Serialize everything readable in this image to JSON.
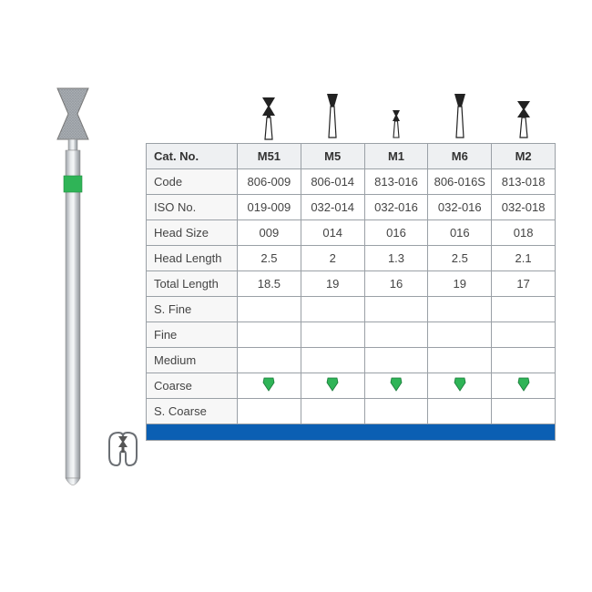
{
  "table": {
    "header_label": "Cat. No.",
    "rows": [
      {
        "label": "Code",
        "values": [
          "806-009",
          "806-014",
          "813-016",
          "806-016S",
          "813-018"
        ]
      },
      {
        "label": "ISO No.",
        "values": [
          "019-009",
          "032-014",
          "032-016",
          "032-016",
          "032-018"
        ]
      },
      {
        "label": "Head Size",
        "values": [
          "009",
          "014",
          "016",
          "016",
          "018"
        ]
      },
      {
        "label": "Head Length",
        "values": [
          "2.5",
          "2",
          "1.3",
          "2.5",
          "2.1"
        ]
      },
      {
        "label": "Total Length",
        "values": [
          "18.5",
          "19",
          "16",
          "19",
          "17"
        ]
      }
    ],
    "grit_rows": [
      {
        "label": "S. Fine",
        "marks": [
          false,
          false,
          false,
          false,
          false
        ]
      },
      {
        "label": "Fine",
        "marks": [
          false,
          false,
          false,
          false,
          false
        ]
      },
      {
        "label": "Medium",
        "marks": [
          false,
          false,
          false,
          false,
          false
        ]
      },
      {
        "label": "Coarse",
        "marks": [
          true,
          true,
          true,
          true,
          true
        ],
        "mark_color": "#2fb457"
      },
      {
        "label": "S. Coarse",
        "marks": [
          false,
          false,
          false,
          false,
          false
        ]
      }
    ],
    "columns": [
      "M51",
      "M5",
      "M1",
      "M6",
      "M2"
    ]
  },
  "icons": {
    "bur_heads": [
      {
        "head_w": 16,
        "head_h": 22,
        "shank_h": 22,
        "type": "doublecone"
      },
      {
        "head_w": 14,
        "head_h": 18,
        "shank_h": 30,
        "type": "invcone"
      },
      {
        "head_w": 10,
        "head_h": 10,
        "shank_h": 18,
        "type": "doublecone_small"
      },
      {
        "head_w": 14,
        "head_h": 18,
        "shank_h": 30,
        "type": "invcone"
      },
      {
        "head_w": 14,
        "head_h": 18,
        "shank_h": 22,
        "type": "doublecone"
      }
    ]
  },
  "colors": {
    "border": "#9aa0a6",
    "header_bg": "#eef0f2",
    "label_bg": "#f7f7f7",
    "bottom_bar": "#0b5fb3",
    "grit_coarse": "#2fb457",
    "bur_shaft": "#bfc4c9",
    "bur_shaft_hl": "#e6e9eb",
    "bur_band": "#2fb457",
    "bur_head": "#9da3a8"
  }
}
